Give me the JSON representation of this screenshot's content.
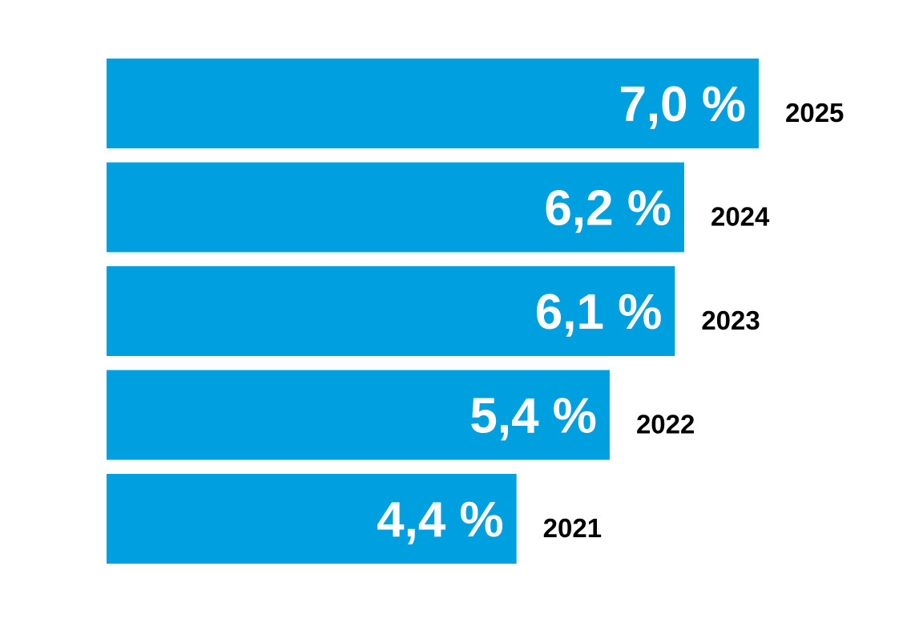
{
  "chart_data": {
    "type": "bar",
    "orientation": "horizontal",
    "categories": [
      "2025",
      "2024",
      "2023",
      "2022",
      "2021"
    ],
    "values": [
      7.0,
      6.2,
      6.1,
      5.4,
      4.4
    ],
    "value_labels": [
      "7,0 %",
      "6,2 %",
      "6,1 %",
      "5,4 %",
      "4,4 %"
    ],
    "unit": "%",
    "title": "",
    "xlabel": "",
    "ylabel": "",
    "xlim": [
      0,
      7.0
    ],
    "grid": false,
    "legend": "none",
    "bar_color": "#00a0e0",
    "value_label_color": "#ffffff",
    "category_label_color": "#000000"
  }
}
